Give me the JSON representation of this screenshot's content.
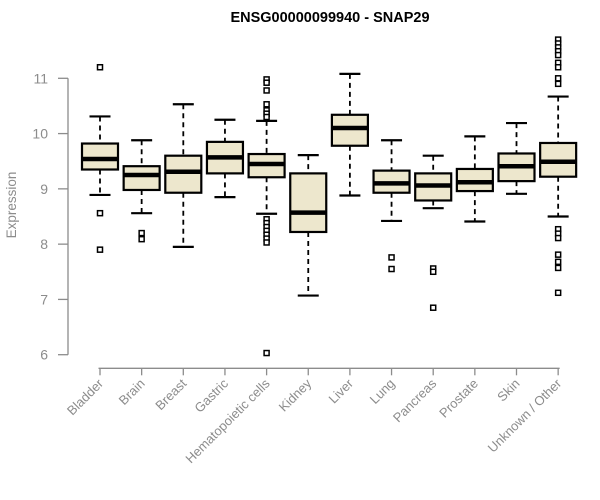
{
  "chart_data": {
    "type": "boxplot",
    "title": "ENSG00000099940 - SNAP29",
    "ylabel": "Expression",
    "xlabel": "",
    "ylim": [
      6,
      11.8
    ],
    "yticks": [
      6,
      7,
      8,
      9,
      10,
      11
    ],
    "grid": false,
    "legend": "none",
    "categories": [
      "Bladder",
      "Brain",
      "Breast",
      "Gastric",
      "Hematopoietic cells",
      "Kidney",
      "Liver",
      "Lung",
      "Pancreas",
      "Prostate",
      "Skin",
      "Unknown / Other"
    ],
    "stats": [
      {
        "whisker_low": 8.89,
        "q1": 9.35,
        "median": 9.54,
        "q3": 9.82,
        "whisker_high": 10.31,
        "outliers": [
          11.2,
          8.56,
          7.9
        ]
      },
      {
        "whisker_low": 8.56,
        "q1": 8.98,
        "median": 9.25,
        "q3": 9.41,
        "whisker_high": 9.88,
        "outliers": [
          8.2,
          8.09
        ]
      },
      {
        "whisker_low": 7.95,
        "q1": 8.93,
        "median": 9.31,
        "q3": 9.6,
        "whisker_high": 10.53,
        "outliers": []
      },
      {
        "whisker_low": 8.85,
        "q1": 9.28,
        "median": 9.57,
        "q3": 9.85,
        "whisker_high": 10.25,
        "outliers": []
      },
      {
        "whisker_low": 8.55,
        "q1": 9.21,
        "median": 9.45,
        "q3": 9.63,
        "whisker_high": 10.23,
        "outliers": [
          10.98,
          10.92,
          10.78,
          10.53,
          10.42,
          10.36,
          10.3,
          8.45,
          8.38,
          8.31,
          8.24,
          8.17,
          8.1,
          8.03,
          6.03
        ]
      },
      {
        "whisker_low": 7.07,
        "q1": 8.22,
        "median": 8.57,
        "q3": 9.28,
        "whisker_high": 9.61,
        "outliers": []
      },
      {
        "whisker_low": 8.88,
        "q1": 9.78,
        "median": 10.1,
        "q3": 10.34,
        "whisker_high": 11.08,
        "outliers": []
      },
      {
        "whisker_low": 8.42,
        "q1": 8.93,
        "median": 9.1,
        "q3": 9.33,
        "whisker_high": 9.88,
        "outliers": [
          7.76,
          7.55
        ]
      },
      {
        "whisker_low": 8.65,
        "q1": 8.79,
        "median": 9.06,
        "q3": 9.28,
        "whisker_high": 9.6,
        "outliers": [
          7.56,
          7.5,
          6.85
        ]
      },
      {
        "whisker_low": 8.41,
        "q1": 8.96,
        "median": 9.12,
        "q3": 9.36,
        "whisker_high": 9.95,
        "outliers": []
      },
      {
        "whisker_low": 8.91,
        "q1": 9.14,
        "median": 9.41,
        "q3": 9.64,
        "whisker_high": 10.19,
        "outliers": []
      },
      {
        "whisker_low": 8.5,
        "q1": 9.22,
        "median": 9.49,
        "q3": 9.83,
        "whisker_high": 10.67,
        "outliers": [
          11.7,
          11.63,
          11.56,
          11.49,
          11.42,
          11.28,
          11.2,
          11.0,
          10.9,
          8.27,
          8.19,
          8.11,
          7.81,
          7.68,
          7.57,
          7.12
        ]
      }
    ],
    "colors": {
      "box_fill": "#EDE7CD",
      "box_stroke": "#000000",
      "axis": "#8C8C8C",
      "tick_label": "#8C8C8C",
      "title": "#000000"
    }
  }
}
